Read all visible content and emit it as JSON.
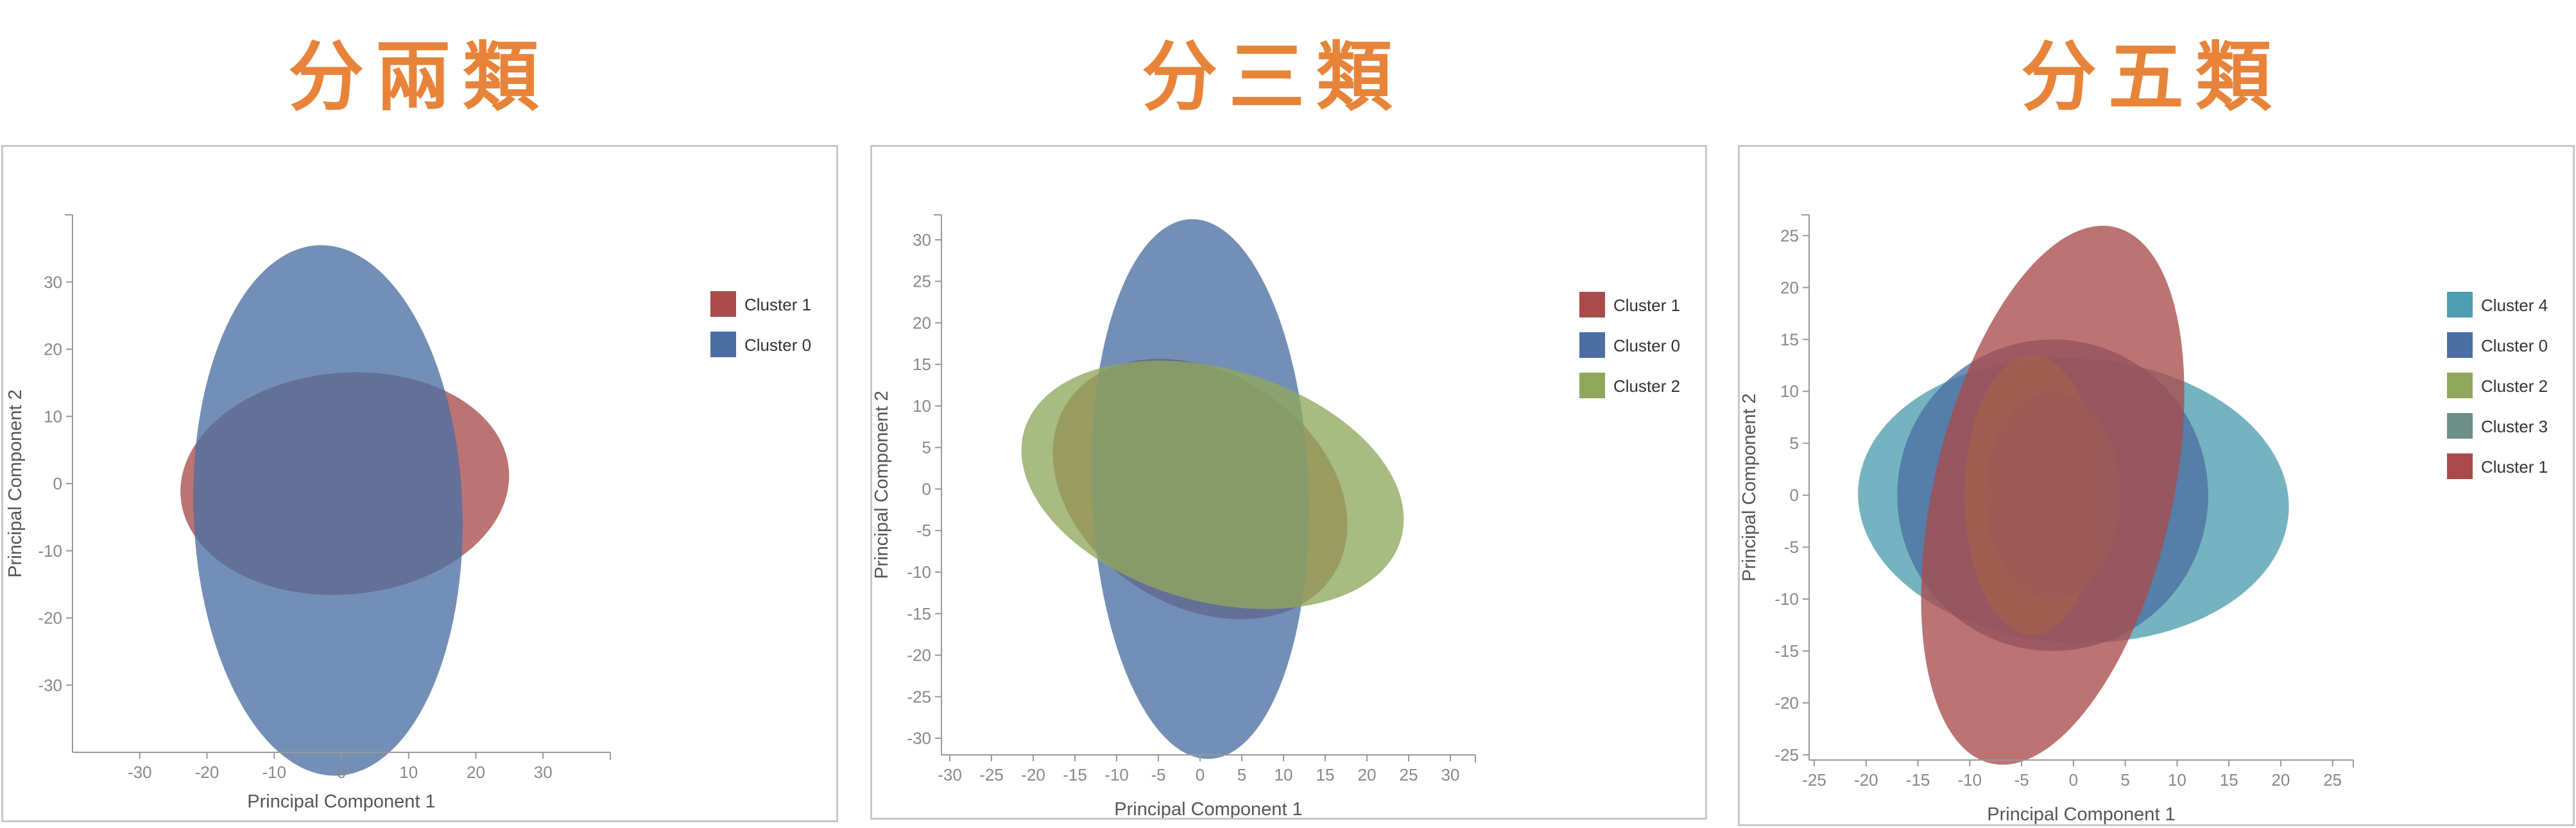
{
  "panels": [
    {
      "title": "分兩類"
    },
    {
      "title": "分三類"
    },
    {
      "title": "分五類"
    }
  ],
  "chart_data": [
    {
      "type": "scatter",
      "xlabel": "Principal Component 1",
      "ylabel": "Principal Component 2",
      "xticks": [
        -30,
        -20,
        -10,
        0,
        10,
        20,
        30
      ],
      "yticks": [
        -30,
        -20,
        -10,
        0,
        10,
        20,
        30
      ],
      "xlim": [
        -40,
        40
      ],
      "ylim": [
        -40,
        40
      ],
      "legend_position": "right",
      "series": [
        {
          "name": "Cluster 1",
          "color": "#A94B4B",
          "ellipse": {
            "cx": 0.5,
            "cy": 0,
            "rx": 24.5,
            "ry": 16.5,
            "angle": -5
          }
        },
        {
          "name": "Cluster 0",
          "color": "#4C6FA3",
          "ellipse": {
            "cx": -2,
            "cy": -4,
            "rx": 20,
            "ry": 39.5,
            "angle": -2
          }
        }
      ]
    },
    {
      "type": "scatter",
      "xlabel": "Principal Component 1",
      "ylabel": "Principal Component 2",
      "xticks": [
        -30,
        -25,
        -20,
        -15,
        -10,
        -5,
        0,
        5,
        10,
        15,
        20,
        25,
        30
      ],
      "yticks": [
        -30,
        -25,
        -20,
        -15,
        -10,
        -5,
        0,
        5,
        10,
        15,
        20,
        25,
        30
      ],
      "xlim": [
        -31,
        33
      ],
      "ylim": [
        -32,
        33
      ],
      "legend_position": "right",
      "series": [
        {
          "name": "Cluster 1",
          "color": "#A94B4B",
          "ellipse": {
            "cx": 0,
            "cy": 0,
            "rx": 19,
            "ry": 14,
            "angle": 33
          }
        },
        {
          "name": "Cluster 0",
          "color": "#4C6FA3",
          "ellipse": {
            "cx": 0,
            "cy": 0,
            "rx": 13,
            "ry": 32.5,
            "angle": -2
          }
        },
        {
          "name": "Cluster 2",
          "color": "#8FA85C",
          "ellipse": {
            "cx": 1.5,
            "cy": 0.5,
            "rx": 23.5,
            "ry": 14,
            "angle": 16
          }
        }
      ]
    },
    {
      "type": "scatter",
      "xlabel": "Principal Component 1",
      "ylabel": "Principal Component 2",
      "xticks": [
        -25,
        -20,
        -15,
        -10,
        -5,
        0,
        5,
        10,
        15,
        20,
        25
      ],
      "yticks": [
        -25,
        -20,
        -15,
        -10,
        -5,
        0,
        5,
        10,
        15,
        20,
        25
      ],
      "xlim": [
        -25.5,
        27
      ],
      "ylim": [
        -25.5,
        27
      ],
      "legend_position": "right",
      "series": [
        {
          "name": "Cluster 4",
          "color": "#4F9DB0",
          "ellipse": {
            "cx": 0,
            "cy": -0.5,
            "rx": 20.8,
            "ry": 13.7,
            "angle": 3
          }
        },
        {
          "name": "Cluster 0",
          "color": "#4C6FA3",
          "ellipse": {
            "cx": -2,
            "cy": 0,
            "rx": 15,
            "ry": 15,
            "angle": 0
          }
        },
        {
          "name": "Cluster 2",
          "color": "#8FA85C",
          "ellipse": {
            "cx": -4,
            "cy": 0,
            "rx": 6.5,
            "ry": 13.5,
            "angle": 0
          }
        },
        {
          "name": "Cluster 3",
          "color": "#6E8F88",
          "ellipse": {
            "cx": -2,
            "cy": 0,
            "rx": 6.5,
            "ry": 10,
            "angle": 0
          }
        },
        {
          "name": "Cluster 1",
          "color": "#A94B4B",
          "ellipse": {
            "cx": -2,
            "cy": 0,
            "rx": 11.5,
            "ry": 26.5,
            "angle": 13
          }
        }
      ]
    }
  ]
}
